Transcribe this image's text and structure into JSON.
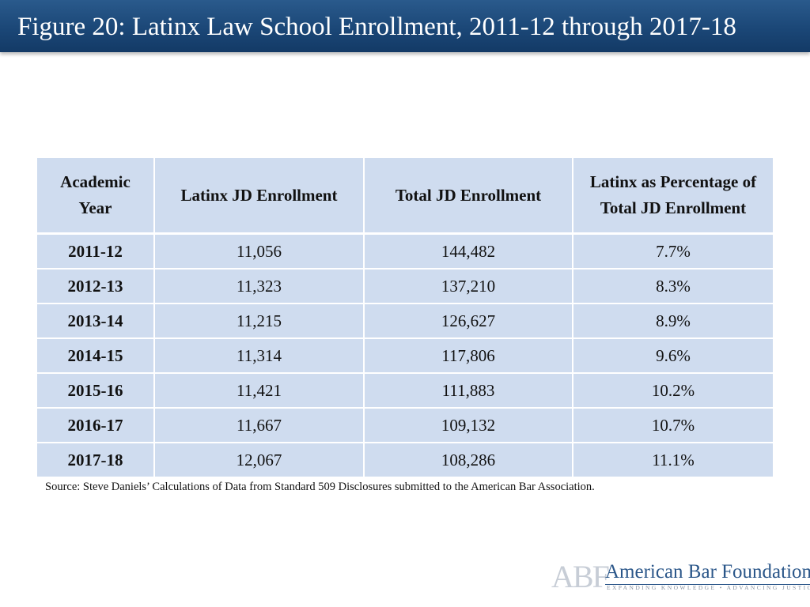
{
  "header": {
    "title": "Figure 20: Latinx Law School Enrollment, 2011-12 through 2017-18"
  },
  "chart_data": {
    "type": "table",
    "title": "Figure 20: Latinx Law School Enrollment, 2011-12 through 2017-18",
    "columns": [
      "Academic Year",
      "Latinx JD Enrollment",
      "Total JD Enrollment",
      "Latinx as Percentage of Total JD Enrollment"
    ],
    "rows": [
      [
        "2011-12",
        "11,056",
        "144,482",
        "7.7%"
      ],
      [
        "2012-13",
        "11,323",
        "137,210",
        "8.3%"
      ],
      [
        "2013-14",
        "11,215",
        "126,627",
        "8.9%"
      ],
      [
        "2014-15",
        "11,314",
        "117,806",
        "9.6%"
      ],
      [
        "2015-16",
        "11,421",
        "111,883",
        "10.2%"
      ],
      [
        "2016-17",
        "11,667",
        "109,132",
        "10.7%"
      ],
      [
        "2017-18",
        "12,067",
        "108,286",
        "11.1%"
      ]
    ]
  },
  "source": "Source: Steve Daniels’ Calculations of Data from Standard 509 Disclosures submitted to the American Bar Association.",
  "logo": {
    "mark": "ABF",
    "name": "American Bar Foundation",
    "tagline": "EXPANDING KNOWLEDGE • ADVANCING JUSTICE"
  },
  "colors": {
    "header": "#1b4777",
    "cell": "#cfdcef",
    "logo_text": "#2a5689"
  }
}
